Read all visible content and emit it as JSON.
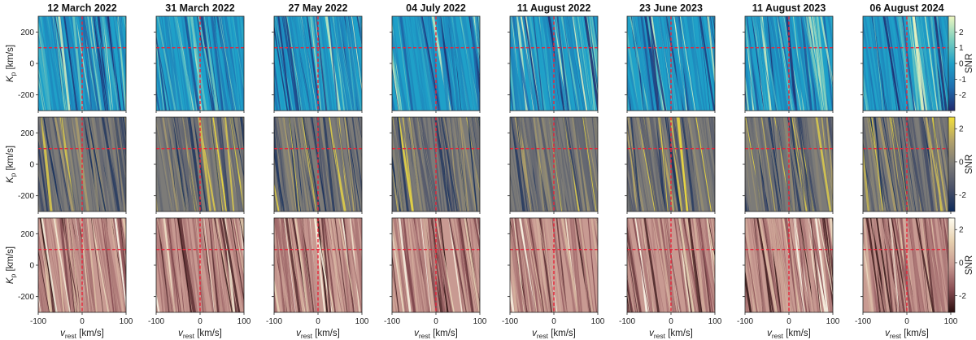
{
  "chart_data": {
    "type": "heatmap",
    "layout": "3 rows × 8 columns of Kp–v_rest SNR maps",
    "columns": [
      "12 March 2022",
      "31 March 2022",
      "27 May 2022",
      "04 July 2022",
      "11 August 2022",
      "23 June 2023",
      "11 August 2023",
      "06 August 2024"
    ],
    "rows": [
      {
        "colormap": "blue-teal-yellow",
        "colors": [
          "#1f2a6e",
          "#1f6fb0",
          "#1fa0c8",
          "#7ccfbe",
          "#eef7c0"
        ],
        "colorbar_range": [
          -3,
          3
        ],
        "colorbar_ticks": [
          -2,
          -1,
          0,
          1,
          2
        ]
      },
      {
        "colormap": "cividis",
        "colors": [
          "#0d2a5a",
          "#4b5269",
          "#7c7b78",
          "#b3a26a",
          "#f3e03a"
        ],
        "colorbar_range": [
          -3,
          2.7
        ],
        "colorbar_ticks": [
          -2,
          0,
          2
        ]
      },
      {
        "colormap": "pink",
        "colors": [
          "#2a0e0e",
          "#8a4f55",
          "#c89a92",
          "#e6cfae",
          "#fffdf0"
        ],
        "colorbar_range": [
          -3,
          2.7
        ],
        "colorbar_ticks": [
          -2,
          0,
          2
        ]
      }
    ],
    "x_axis": {
      "label_main": "v",
      "label_sub": "rest",
      "label_unit": " [km/s]",
      "range": [
        -100,
        100
      ],
      "ticks": [
        -100,
        0,
        100
      ]
    },
    "y_axis": {
      "label_main": "K",
      "label_sub": "p",
      "label_unit": " [km/s]",
      "range": [
        -300,
        300
      ],
      "ticks": [
        200,
        0,
        -200
      ]
    },
    "colorbar_label": "SNR",
    "marker": {
      "v_rest": 0,
      "Kp": 100,
      "color": "#e8253a",
      "style": "dashed"
    }
  }
}
